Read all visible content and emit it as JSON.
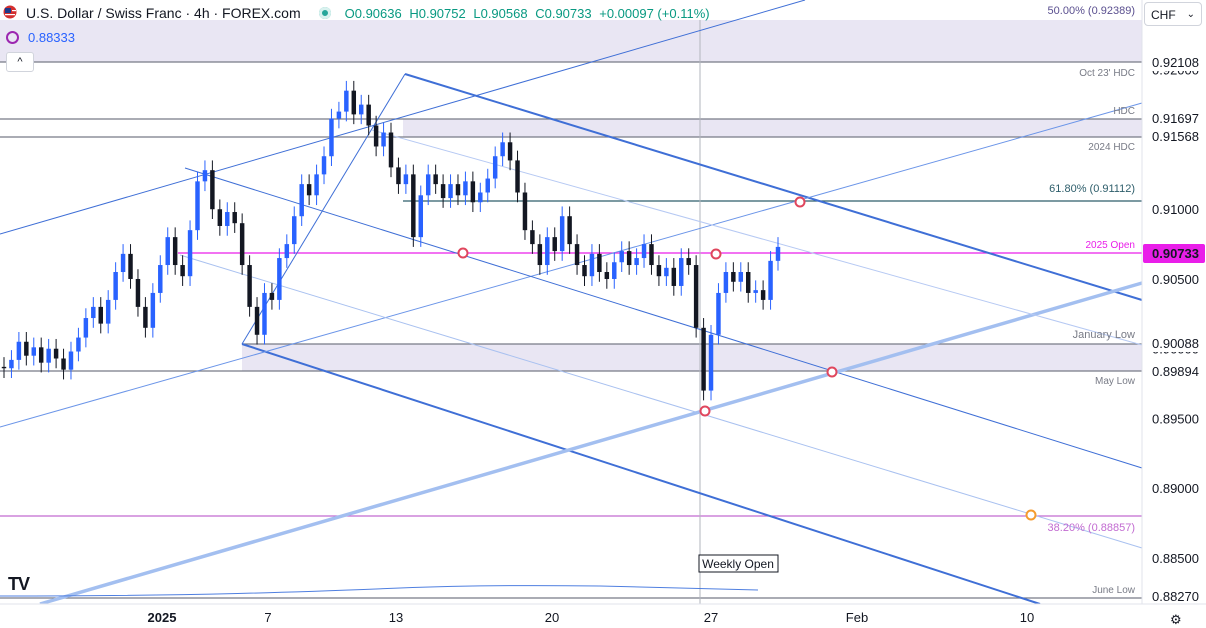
{
  "header": {
    "symbol": "U.S. Dollar / Swiss Franc · 4h · FOREX.com",
    "open": "O0.90636",
    "high": "H0.90752",
    "low": "L0.90568",
    "close": "C0.90733",
    "change": "+0.00097 (+0.11%)",
    "indicator_value": "0.88333",
    "currency": "CHF",
    "collapse_icon": "chevron-up-icon"
  },
  "colors": {
    "bull": "#2962ff",
    "bear": "#131722",
    "channel": "#3f6fd6",
    "fib_pink": "#e91ee9",
    "zone": "#e9e6f3"
  },
  "chart_data": {
    "type": "candlestick",
    "title": "U.S. Dollar / Swiss Franc · 4h · FOREX.com",
    "ylim": [
      0.8817,
      0.925
    ],
    "y_ticks": [
      "0.92000",
      "0.91500",
      "0.91000",
      "0.90500",
      "0.90000",
      "0.89500",
      "0.89000",
      "0.88500"
    ],
    "x_ticks": [
      "2025",
      "7",
      "13",
      "20",
      "27",
      "Feb",
      "10"
    ],
    "series": [
      {
        "close": 0.8986,
        "open": 0.8987
      },
      {
        "close": 0.8992,
        "open": 0.8986
      },
      {
        "close": 0.9005,
        "open": 0.8992
      },
      {
        "close": 0.8995,
        "open": 0.9005
      },
      {
        "close": 0.9001,
        "open": 0.8995
      },
      {
        "close": 0.899,
        "open": 0.9001
      },
      {
        "close": 0.9,
        "open": 0.899
      },
      {
        "close": 0.8993,
        "open": 0.9
      },
      {
        "close": 0.8985,
        "open": 0.8993
      },
      {
        "close": 0.8998,
        "open": 0.8985
      },
      {
        "close": 0.9008,
        "open": 0.8998
      },
      {
        "close": 0.9022,
        "open": 0.9008
      },
      {
        "close": 0.903,
        "open": 0.9022
      },
      {
        "close": 0.9018,
        "open": 0.903
      },
      {
        "close": 0.9035,
        "open": 0.9018
      },
      {
        "close": 0.9055,
        "open": 0.9035
      },
      {
        "close": 0.9068,
        "open": 0.9055
      },
      {
        "close": 0.905,
        "open": 0.9068
      },
      {
        "close": 0.903,
        "open": 0.905
      },
      {
        "close": 0.9015,
        "open": 0.903
      },
      {
        "close": 0.904,
        "open": 0.9015
      },
      {
        "close": 0.906,
        "open": 0.904
      },
      {
        "close": 0.908,
        "open": 0.906
      },
      {
        "close": 0.906,
        "open": 0.908
      },
      {
        "close": 0.9052,
        "open": 0.906
      },
      {
        "close": 0.9085,
        "open": 0.9052
      },
      {
        "close": 0.912,
        "open": 0.9085
      },
      {
        "close": 0.9128,
        "open": 0.912
      },
      {
        "close": 0.91,
        "open": 0.9128
      },
      {
        "close": 0.9088,
        "open": 0.91
      },
      {
        "close": 0.9098,
        "open": 0.9088
      },
      {
        "close": 0.909,
        "open": 0.9098
      },
      {
        "close": 0.906,
        "open": 0.909
      },
      {
        "close": 0.903,
        "open": 0.906
      },
      {
        "close": 0.901,
        "open": 0.903
      },
      {
        "close": 0.904,
        "open": 0.901
      },
      {
        "close": 0.9035,
        "open": 0.904
      },
      {
        "close": 0.9065,
        "open": 0.9035
      },
      {
        "close": 0.9075,
        "open": 0.9065
      },
      {
        "close": 0.9095,
        "open": 0.9075
      },
      {
        "close": 0.9118,
        "open": 0.9095
      },
      {
        "close": 0.911,
        "open": 0.9118
      },
      {
        "close": 0.9125,
        "open": 0.911
      },
      {
        "close": 0.9138,
        "open": 0.9125
      },
      {
        "close": 0.9165,
        "open": 0.9138
      },
      {
        "close": 0.917,
        "open": 0.9165
      },
      {
        "close": 0.9185,
        "open": 0.917
      },
      {
        "close": 0.9168,
        "open": 0.9185
      },
      {
        "close": 0.9175,
        "open": 0.9168
      },
      {
        "close": 0.916,
        "open": 0.9175
      },
      {
        "close": 0.9145,
        "open": 0.916
      },
      {
        "close": 0.9155,
        "open": 0.9145
      },
      {
        "close": 0.913,
        "open": 0.9155
      },
      {
        "close": 0.9118,
        "open": 0.913
      },
      {
        "close": 0.9125,
        "open": 0.9118
      },
      {
        "close": 0.908,
        "open": 0.9125
      },
      {
        "close": 0.911,
        "open": 0.908
      },
      {
        "close": 0.9125,
        "open": 0.911
      },
      {
        "close": 0.9118,
        "open": 0.9125
      },
      {
        "close": 0.9108,
        "open": 0.9118
      },
      {
        "close": 0.9118,
        "open": 0.9108
      },
      {
        "close": 0.911,
        "open": 0.9118
      },
      {
        "close": 0.912,
        "open": 0.911
      },
      {
        "close": 0.9105,
        "open": 0.912
      },
      {
        "close": 0.9112,
        "open": 0.9105
      },
      {
        "close": 0.9122,
        "open": 0.9112
      },
      {
        "close": 0.9138,
        "open": 0.9122
      },
      {
        "close": 0.9148,
        "open": 0.9138
      },
      {
        "close": 0.9135,
        "open": 0.9148
      },
      {
        "close": 0.9112,
        "open": 0.9135
      },
      {
        "close": 0.9085,
        "open": 0.9112
      },
      {
        "close": 0.9075,
        "open": 0.9085
      },
      {
        "close": 0.906,
        "open": 0.9075
      },
      {
        "close": 0.908,
        "open": 0.906
      },
      {
        "close": 0.907,
        "open": 0.908
      },
      {
        "close": 0.9095,
        "open": 0.907
      },
      {
        "close": 0.9075,
        "open": 0.9095
      },
      {
        "close": 0.906,
        "open": 0.9075
      },
      {
        "close": 0.9052,
        "open": 0.906
      },
      {
        "close": 0.9068,
        "open": 0.9052
      },
      {
        "close": 0.9055,
        "open": 0.9068
      },
      {
        "close": 0.905,
        "open": 0.9055
      },
      {
        "close": 0.9062,
        "open": 0.905
      },
      {
        "close": 0.907,
        "open": 0.9062
      },
      {
        "close": 0.906,
        "open": 0.907
      },
      {
        "close": 0.9065,
        "open": 0.906
      },
      {
        "close": 0.9075,
        "open": 0.9065
      },
      {
        "close": 0.906,
        "open": 0.9075
      },
      {
        "close": 0.9052,
        "open": 0.906
      },
      {
        "close": 0.9058,
        "open": 0.9052
      },
      {
        "close": 0.9045,
        "open": 0.9058
      },
      {
        "close": 0.9065,
        "open": 0.9045
      },
      {
        "close": 0.906,
        "open": 0.9065
      },
      {
        "close": 0.9015,
        "open": 0.906
      },
      {
        "close": 0.897,
        "open": 0.9015
      },
      {
        "close": 0.901,
        "open": 0.897
      },
      {
        "close": 0.904,
        "open": 0.901
      },
      {
        "close": 0.9055,
        "open": 0.904
      },
      {
        "close": 0.9048,
        "open": 0.9055
      },
      {
        "close": 0.9055,
        "open": 0.9048
      },
      {
        "close": 0.904,
        "open": 0.9055
      },
      {
        "close": 0.9042,
        "open": 0.904
      },
      {
        "close": 0.9035,
        "open": 0.9042
      },
      {
        "close": 0.9063,
        "open": 0.9035
      },
      {
        "close": 0.9073,
        "open": 0.9063
      }
    ]
  },
  "levels": {
    "fib_50": "50.00% (0.92389)",
    "oct_hdc": "Oct 23' HDC",
    "hdc": "HDC",
    "y2024_hdc": "2024 HDC",
    "fib_618": "61.80% (0.91112)",
    "open_2025": "2025 Open",
    "january_low": "January Low",
    "may_low": "May Low",
    "fib_382": "38.20% (0.88857)",
    "june_low": "June Low",
    "weekly_open": "Weekly Open"
  },
  "price_tags": {
    "p92108": "0.92108",
    "p91697": "0.91697",
    "p91568": "0.91568",
    "p90733": "0.90733",
    "p90088": "0.90088",
    "p89894": "0.89894",
    "p88270": "0.88270"
  }
}
